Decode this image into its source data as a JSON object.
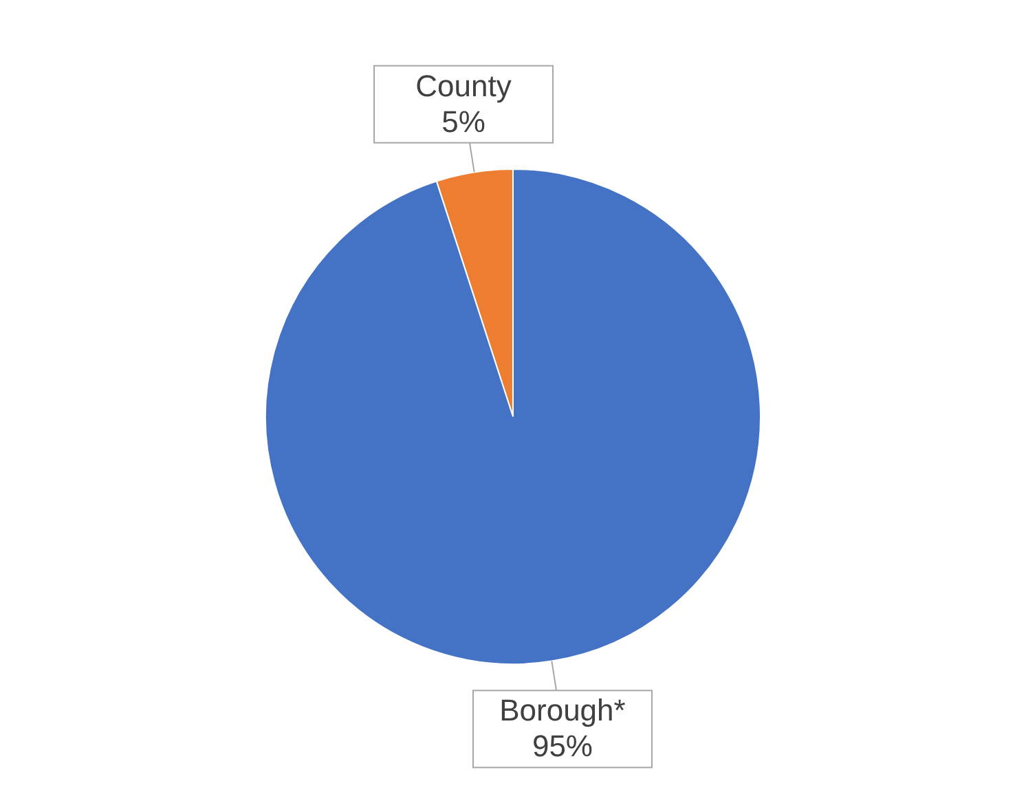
{
  "chart_data": {
    "type": "pie",
    "categories": [
      "County",
      "Borough*"
    ],
    "values": [
      5,
      95
    ],
    "colors": [
      "#ed7d31",
      "#4472c4"
    ],
    "value_labels": [
      "5%",
      "95%"
    ]
  }
}
